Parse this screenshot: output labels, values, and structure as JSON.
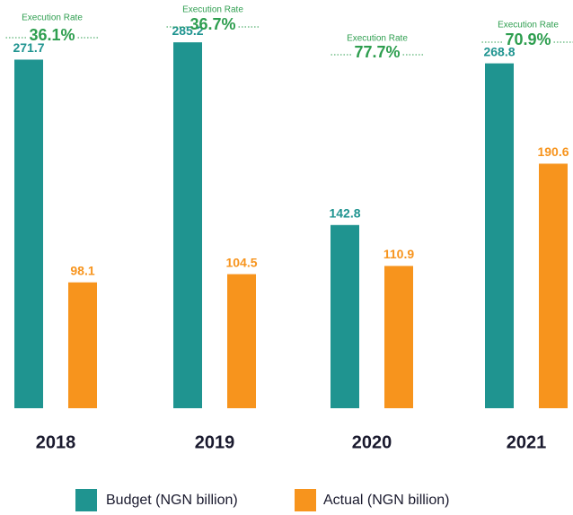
{
  "chart_data": {
    "type": "bar",
    "categories": [
      "2018",
      "2019",
      "2020",
      "2021"
    ],
    "series": [
      {
        "name": "Budget (NGN billion)",
        "color": "#1f9490",
        "values": [
          271.7,
          285.2,
          142.8,
          268.8
        ]
      },
      {
        "name": "Actual (NGN billion)",
        "color": "#f7941d",
        "values": [
          98.1,
          104.5,
          110.9,
          190.6
        ]
      }
    ],
    "annotations": {
      "label": "Execution Rate",
      "color": "#2e9e4f",
      "values": [
        36.1,
        36.7,
        77.7,
        70.9
      ],
      "value_labels": [
        "36.1%",
        "36.7%",
        "77.7%",
        "70.9%"
      ]
    }
  }
}
